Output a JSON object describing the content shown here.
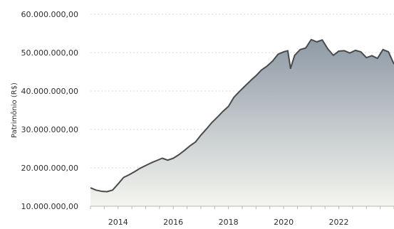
{
  "chart_data": {
    "type": "area",
    "title": "",
    "xlabel": "",
    "ylabel": "Patrimônio (R$)",
    "x_ticks": [
      "2014",
      "2016",
      "2018",
      "2020",
      "2022"
    ],
    "y_ticks": [
      "10.000.000,00",
      "20.000.000,00",
      "30.000.000,00",
      "40.000.000,00",
      "50.000.000,00",
      "60.000.000,00"
    ],
    "xlim": [
      2013.0,
      2024.0
    ],
    "ylim": [
      10000000,
      60000000
    ],
    "grid": {
      "horizontal": true,
      "vertical": false
    },
    "legend": "none",
    "colors": {
      "line": "#4a4a4a",
      "fill_top": "#8f9aa6",
      "fill_bottom": "#f4f5ef",
      "grid": "#d9d9d9",
      "axis": "#b5b5b5"
    },
    "series": [
      {
        "x": [
          2013.0,
          2013.2,
          2013.4,
          2013.6,
          2013.8,
          2014.0,
          2014.2,
          2014.4,
          2014.6,
          2014.8,
          2015.0,
          2015.2,
          2015.4,
          2015.6,
          2015.8,
          2016.0,
          2016.2,
          2016.4,
          2016.6,
          2016.8,
          2017.0,
          2017.2,
          2017.4,
          2017.6,
          2017.8,
          2018.0,
          2018.2,
          2018.4,
          2018.6,
          2018.8,
          2019.0,
          2019.2,
          2019.4,
          2019.6,
          2019.8,
          2020.0,
          2020.15,
          2020.25,
          2020.4,
          2020.6,
          2020.8,
          2021.0,
          2021.2,
          2021.4,
          2021.6,
          2021.8,
          2022.0,
          2022.2,
          2022.4,
          2022.6,
          2022.8,
          2023.0,
          2023.2,
          2023.4,
          2023.6,
          2023.8,
          2024.0
        ],
        "values": [
          14800000,
          14200000,
          13900000,
          13800000,
          14200000,
          15800000,
          17500000,
          18200000,
          19000000,
          19900000,
          20600000,
          21300000,
          21900000,
          22500000,
          22000000,
          22500000,
          23400000,
          24500000,
          25700000,
          26700000,
          28500000,
          30100000,
          31800000,
          33200000,
          34700000,
          36000000,
          38400000,
          39900000,
          41300000,
          42700000,
          44000000,
          45500000,
          46500000,
          47800000,
          49600000,
          50200000,
          50500000,
          45900000,
          49300000,
          50800000,
          51200000,
          53400000,
          52800000,
          53300000,
          51000000,
          49300000,
          50400000,
          50500000,
          49900000,
          50600000,
          50200000,
          48700000,
          49200000,
          48500000,
          50800000,
          50200000,
          47000000
        ]
      }
    ]
  }
}
